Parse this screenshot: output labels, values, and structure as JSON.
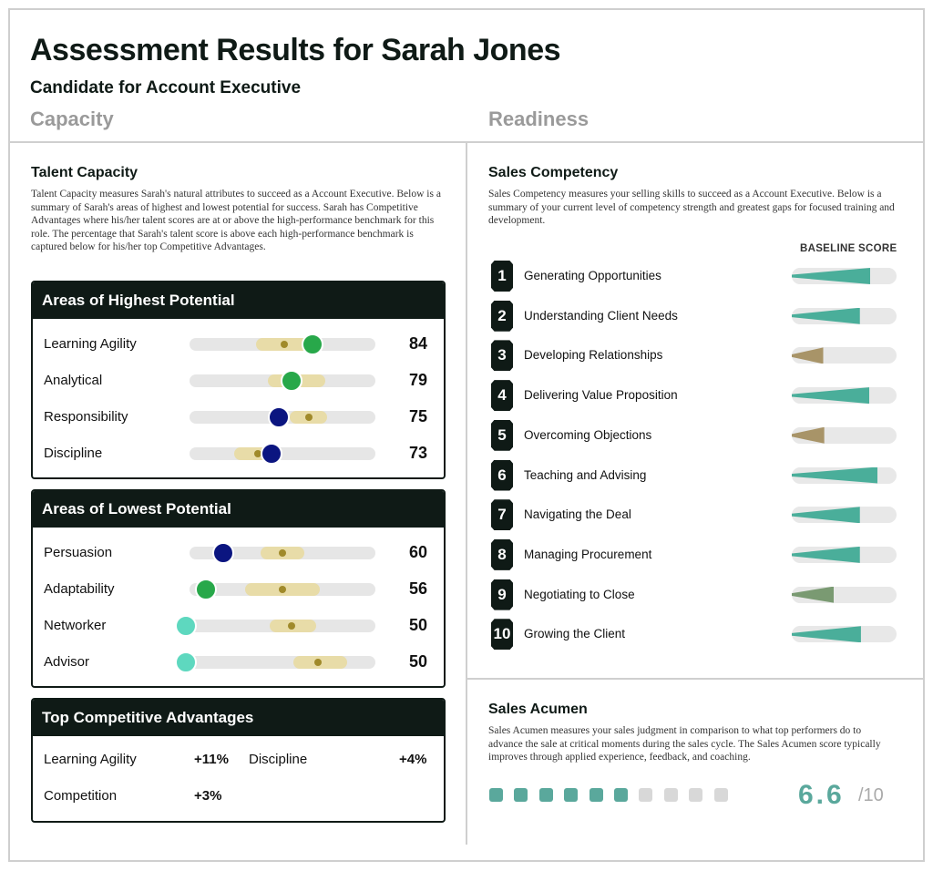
{
  "header": {
    "title": "Assessment Results for Sarah Jones",
    "subtitle": "Candidate for Account Executive",
    "capacity_label": "Capacity",
    "readiness_label": "Readiness"
  },
  "talent_capacity": {
    "title": "Talent Capacity",
    "description": "Talent Capacity measures Sarah's natural attributes to succeed as a Account Executive. Below is a summary of Sarah's areas of highest and lowest potential for success. Sarah has Competitive Advantages where his/her talent scores are at or above the high-performance benchmark for this role. The percentage that Sarah's talent score is above each high-performance benchmark is captured below for his/her top Competitive Advantages."
  },
  "highest": {
    "title": "Areas of Highest Potential",
    "rows": [
      {
        "label": "Learning Agility",
        "score": "84",
        "marker_color": "#28a84a",
        "marker_pct": 0.66,
        "bench_start": 0.36,
        "bench_end": 0.7,
        "bench_dot": 0.51
      },
      {
        "label": "Analytical",
        "score": "79",
        "marker_color": "#28a84a",
        "marker_pct": 0.55,
        "bench_start": 0.42,
        "bench_end": 0.73,
        "bench_dot": 0.56
      },
      {
        "label": "Responsibility",
        "score": "75",
        "marker_color": "#0b1580",
        "marker_pct": 0.48,
        "bench_start": 0.54,
        "bench_end": 0.74,
        "bench_dot": 0.64
      },
      {
        "label": "Discipline",
        "score": "73",
        "marker_color": "#0b1580",
        "marker_pct": 0.44,
        "bench_start": 0.24,
        "bench_end": 0.5,
        "bench_dot": 0.37
      }
    ]
  },
  "lowest": {
    "title": "Areas of Lowest Potential",
    "rows": [
      {
        "label": "Persuasion",
        "score": "60",
        "marker_color": "#0b1580",
        "marker_pct": 0.18,
        "bench_start": 0.38,
        "bench_end": 0.62,
        "bench_dot": 0.5
      },
      {
        "label": "Adaptability",
        "score": "56",
        "marker_color": "#28a84a",
        "marker_pct": 0.09,
        "bench_start": 0.3,
        "bench_end": 0.7,
        "bench_dot": 0.5
      },
      {
        "label": "Networker",
        "score": "50",
        "marker_color": "#5ed8bf",
        "marker_pct": -0.02,
        "bench_start": 0.43,
        "bench_end": 0.68,
        "bench_dot": 0.55
      },
      {
        "label": "Advisor",
        "score": "50",
        "marker_color": "#5ed8bf",
        "marker_pct": -0.02,
        "bench_start": 0.56,
        "bench_end": 0.85,
        "bench_dot": 0.69
      }
    ]
  },
  "advantages": {
    "title": "Top Competitive Advantages",
    "items": [
      {
        "label": "Learning Agility",
        "pct": "+11%"
      },
      {
        "label": "Discipline",
        "pct": "+4%"
      },
      {
        "label": "Competition",
        "pct": "+3%"
      }
    ]
  },
  "sales_competency": {
    "title": "Sales Competency",
    "description": "Sales Competency measures your selling skills to succeed as a Account Executive. Below is a summary of your current level of competency strength and greatest gaps for focused training and development.",
    "baseline_label": "BASELINE SCORE",
    "items": [
      {
        "num": "1",
        "label": "Generating Opportunities",
        "fill": 0.75,
        "color": "#4aae9a"
      },
      {
        "num": "2",
        "label": "Understanding Client Needs",
        "fill": 0.65,
        "color": "#4aae9a"
      },
      {
        "num": "3",
        "label": "Developing Relationships",
        "fill": 0.3,
        "color": "#a89468"
      },
      {
        "num": "4",
        "label": "Delivering Value Proposition",
        "fill": 0.74,
        "color": "#4aae9a"
      },
      {
        "num": "5",
        "label": "Overcoming Objections",
        "fill": 0.31,
        "color": "#a89468"
      },
      {
        "num": "6",
        "label": "Teaching and Advising",
        "fill": 0.82,
        "color": "#4aae9a"
      },
      {
        "num": "7",
        "label": "Navigating the Deal",
        "fill": 0.65,
        "color": "#4aae9a"
      },
      {
        "num": "8",
        "label": "Managing Procurement",
        "fill": 0.65,
        "color": "#4aae9a"
      },
      {
        "num": "9",
        "label": "Negotiating to Close",
        "fill": 0.4,
        "color": "#7a9a72"
      },
      {
        "num": "10",
        "label": "Growing the Client",
        "fill": 0.66,
        "color": "#4aae9a"
      }
    ]
  },
  "sales_acumen": {
    "title": "Sales Acumen",
    "description": "Sales Acumen measures your sales judgment in comparison to what top performers do to advance the sale at critical moments during the sales cycle. The Sales Acumen score typically improves through applied experience, feedback, and coaching.",
    "score": "6.6",
    "out_of": "/10",
    "filled": 6,
    "total": 10,
    "fill_color": "#5aa89c",
    "empty_color": "#d8d8d8"
  }
}
